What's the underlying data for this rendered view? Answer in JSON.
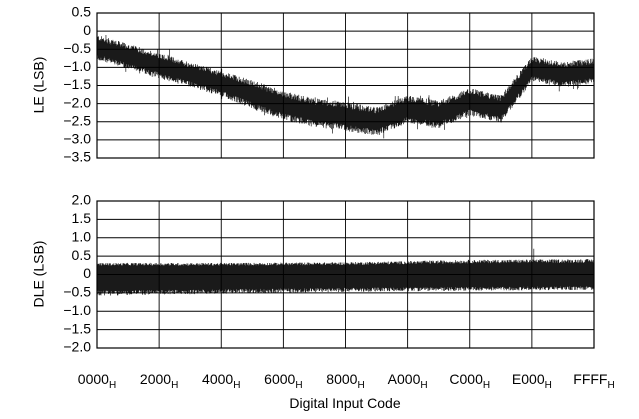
{
  "chart_data": [
    {
      "type": "line",
      "ylabel": "LE (LSB)",
      "xlabel": "",
      "ylim": [
        -3.5,
        0.5
      ],
      "yticks": [
        "0.5",
        "0",
        "−0.5",
        "−1.0",
        "−1.5",
        "−2.0",
        "−2.5",
        "−3.0",
        "−3.5"
      ],
      "grid": true,
      "series_color": "#1a1a1a",
      "trend": {
        "x": [
          0,
          4096,
          8192,
          12288,
          16384,
          20480,
          24576,
          28672,
          32768,
          36864,
          40960,
          45056,
          49152,
          53248,
          57344,
          61440,
          65535
        ],
        "center": [
          -0.45,
          -0.7,
          -0.95,
          -1.2,
          -1.45,
          -1.75,
          -2.05,
          -2.25,
          -2.35,
          -2.5,
          -2.15,
          -2.3,
          -1.95,
          -2.15,
          -1.05,
          -1.2,
          -1.1
        ],
        "band": [
          0.35,
          0.35,
          0.35,
          0.35,
          0.35,
          0.4,
          0.4,
          0.4,
          0.4,
          0.4,
          0.38,
          0.38,
          0.38,
          0.38,
          0.35,
          0.35,
          0.35
        ]
      }
    },
    {
      "type": "line",
      "ylabel": "DLE (LSB)",
      "xlabel": "Digital Input Code",
      "ylim": [
        -2.0,
        2.0
      ],
      "yticks": [
        "2.0",
        "1.5",
        "1.0",
        "0.5",
        "0",
        "−0.5",
        "−1.0",
        "−1.5",
        "−2.0"
      ],
      "xticks": [
        {
          "main": "0000",
          "sub": "H"
        },
        {
          "main": "2000",
          "sub": "H"
        },
        {
          "main": "4000",
          "sub": "H"
        },
        {
          "main": "6000",
          "sub": "H"
        },
        {
          "main": "8000",
          "sub": "H"
        },
        {
          "main": "A000",
          "sub": "H"
        },
        {
          "main": "C000",
          "sub": "H"
        },
        {
          "main": "E000",
          "sub": "H"
        },
        {
          "main": "FFFF",
          "sub": "H"
        }
      ],
      "grid": true,
      "series_color": "#1a1a1a",
      "trend": {
        "x": [
          0,
          16384,
          32768,
          49152,
          65535
        ],
        "upper": [
          0.3,
          0.3,
          0.32,
          0.38,
          0.4
        ],
        "lower": [
          -0.55,
          -0.5,
          -0.45,
          -0.42,
          -0.4
        ],
        "spike": {
          "x": 57600,
          "value": 0.7
        }
      }
    }
  ]
}
